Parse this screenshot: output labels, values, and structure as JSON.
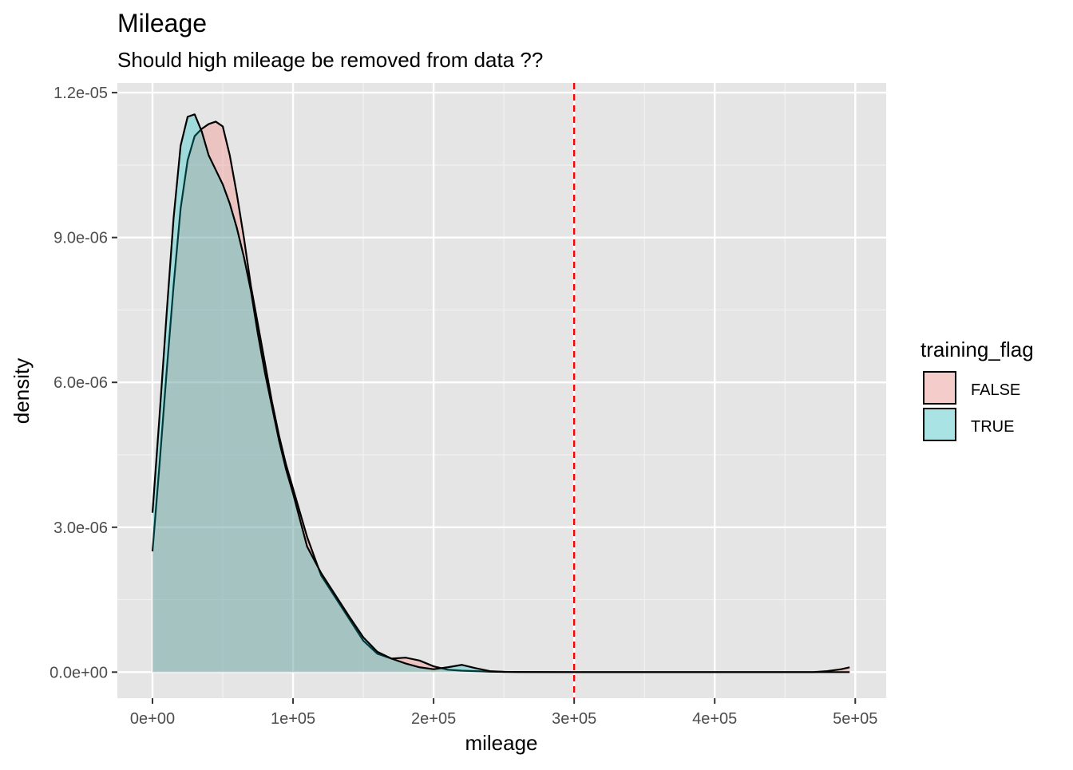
{
  "chart_data": {
    "type": "area",
    "title": "Mileage",
    "subtitle": "Should high mileage be removed from data ??",
    "xlabel": "mileage",
    "ylabel": "density",
    "xlim": [
      -25000,
      522000
    ],
    "ylim": [
      -5.4e-07,
      1.22e-05
    ],
    "x_ticks": [
      0,
      100000,
      200000,
      300000,
      400000,
      500000
    ],
    "x_tick_labels": [
      "0e+00",
      "1e+05",
      "2e+05",
      "3e+05",
      "4e+05",
      "5e+05"
    ],
    "y_ticks": [
      0,
      3e-06,
      6e-06,
      9e-06,
      1.2e-05
    ],
    "y_tick_labels": [
      "0.0e+00",
      "3.0e-06",
      "6.0e-06",
      "9.0e-06",
      "1.2e-05"
    ],
    "vline": {
      "x": 300000,
      "color": "#ff0000",
      "style": "dashed"
    },
    "legend": {
      "title": "training_flag",
      "position": "right",
      "items": [
        {
          "label": "FALSE",
          "color": "#f8766d"
        },
        {
          "label": "TRUE",
          "color": "#00bfc4"
        }
      ]
    },
    "series": [
      {
        "name": "FALSE",
        "color": "#f8766d",
        "x": [
          0,
          5000,
          10000,
          15000,
          20000,
          25000,
          30000,
          35000,
          40000,
          45000,
          50000,
          55000,
          60000,
          65000,
          70000,
          75000,
          80000,
          85000,
          90000,
          95000,
          100000,
          110000,
          120000,
          130000,
          140000,
          150000,
          160000,
          170000,
          180000,
          190000,
          200000,
          210000,
          220000,
          230000,
          240000,
          250000,
          260000,
          300000,
          350000,
          400000,
          450000,
          470000,
          480000,
          490000,
          496000
        ],
        "y": [
          2.5e-06,
          4.3e-06,
          6.2e-06,
          8e-06,
          9.6e-06,
          1.06e-05,
          1.11e-05,
          1.125e-05,
          1.135e-05,
          1.14e-05,
          1.13e-05,
          1.07e-05,
          9.9e-06,
          9e-06,
          8e-06,
          7.2e-06,
          6.4e-06,
          5.6e-06,
          4.9e-06,
          4.3e-06,
          3.8e-06,
          2.8e-06,
          2e-06,
          1.55e-06,
          1.1e-06,
          6.5e-07,
          3.8e-07,
          2.8e-07,
          3e-07,
          2.4e-07,
          1.2e-07,
          5e-08,
          3e-08,
          2e-08,
          1e-08,
          5e-09,
          2e-09,
          0,
          0,
          0,
          0,
          0,
          2e-08,
          6e-08,
          1e-07
        ]
      },
      {
        "name": "TRUE",
        "color": "#00bfc4",
        "x": [
          0,
          5000,
          10000,
          15000,
          20000,
          25000,
          30000,
          35000,
          40000,
          45000,
          50000,
          55000,
          60000,
          65000,
          70000,
          75000,
          80000,
          85000,
          90000,
          95000,
          100000,
          110000,
          120000,
          130000,
          140000,
          150000,
          160000,
          170000,
          180000,
          190000,
          200000,
          210000,
          220000,
          230000,
          240000,
          250000,
          260000,
          300000,
          350000,
          400000,
          450000,
          480000,
          496000
        ],
        "y": [
          3.3e-06,
          5.3e-06,
          7.4e-06,
          9.4e-06,
          1.09e-05,
          1.15e-05,
          1.155e-05,
          1.12e-05,
          1.07e-05,
          1.04e-05,
          1.01e-05,
          9.7e-06,
          9.2e-06,
          8.6e-06,
          7.9e-06,
          7e-06,
          6.2e-06,
          5.5e-06,
          4.8e-06,
          4.2e-06,
          3.7e-06,
          2.6e-06,
          2.05e-06,
          1.6e-06,
          1.15e-06,
          7.2e-07,
          4.2e-07,
          2.8e-07,
          1.8e-07,
          1e-07,
          6e-08,
          1e-07,
          1.5e-07,
          8e-08,
          2e-08,
          5e-09,
          2e-09,
          0,
          0,
          0,
          0,
          0,
          0
        ]
      }
    ]
  }
}
